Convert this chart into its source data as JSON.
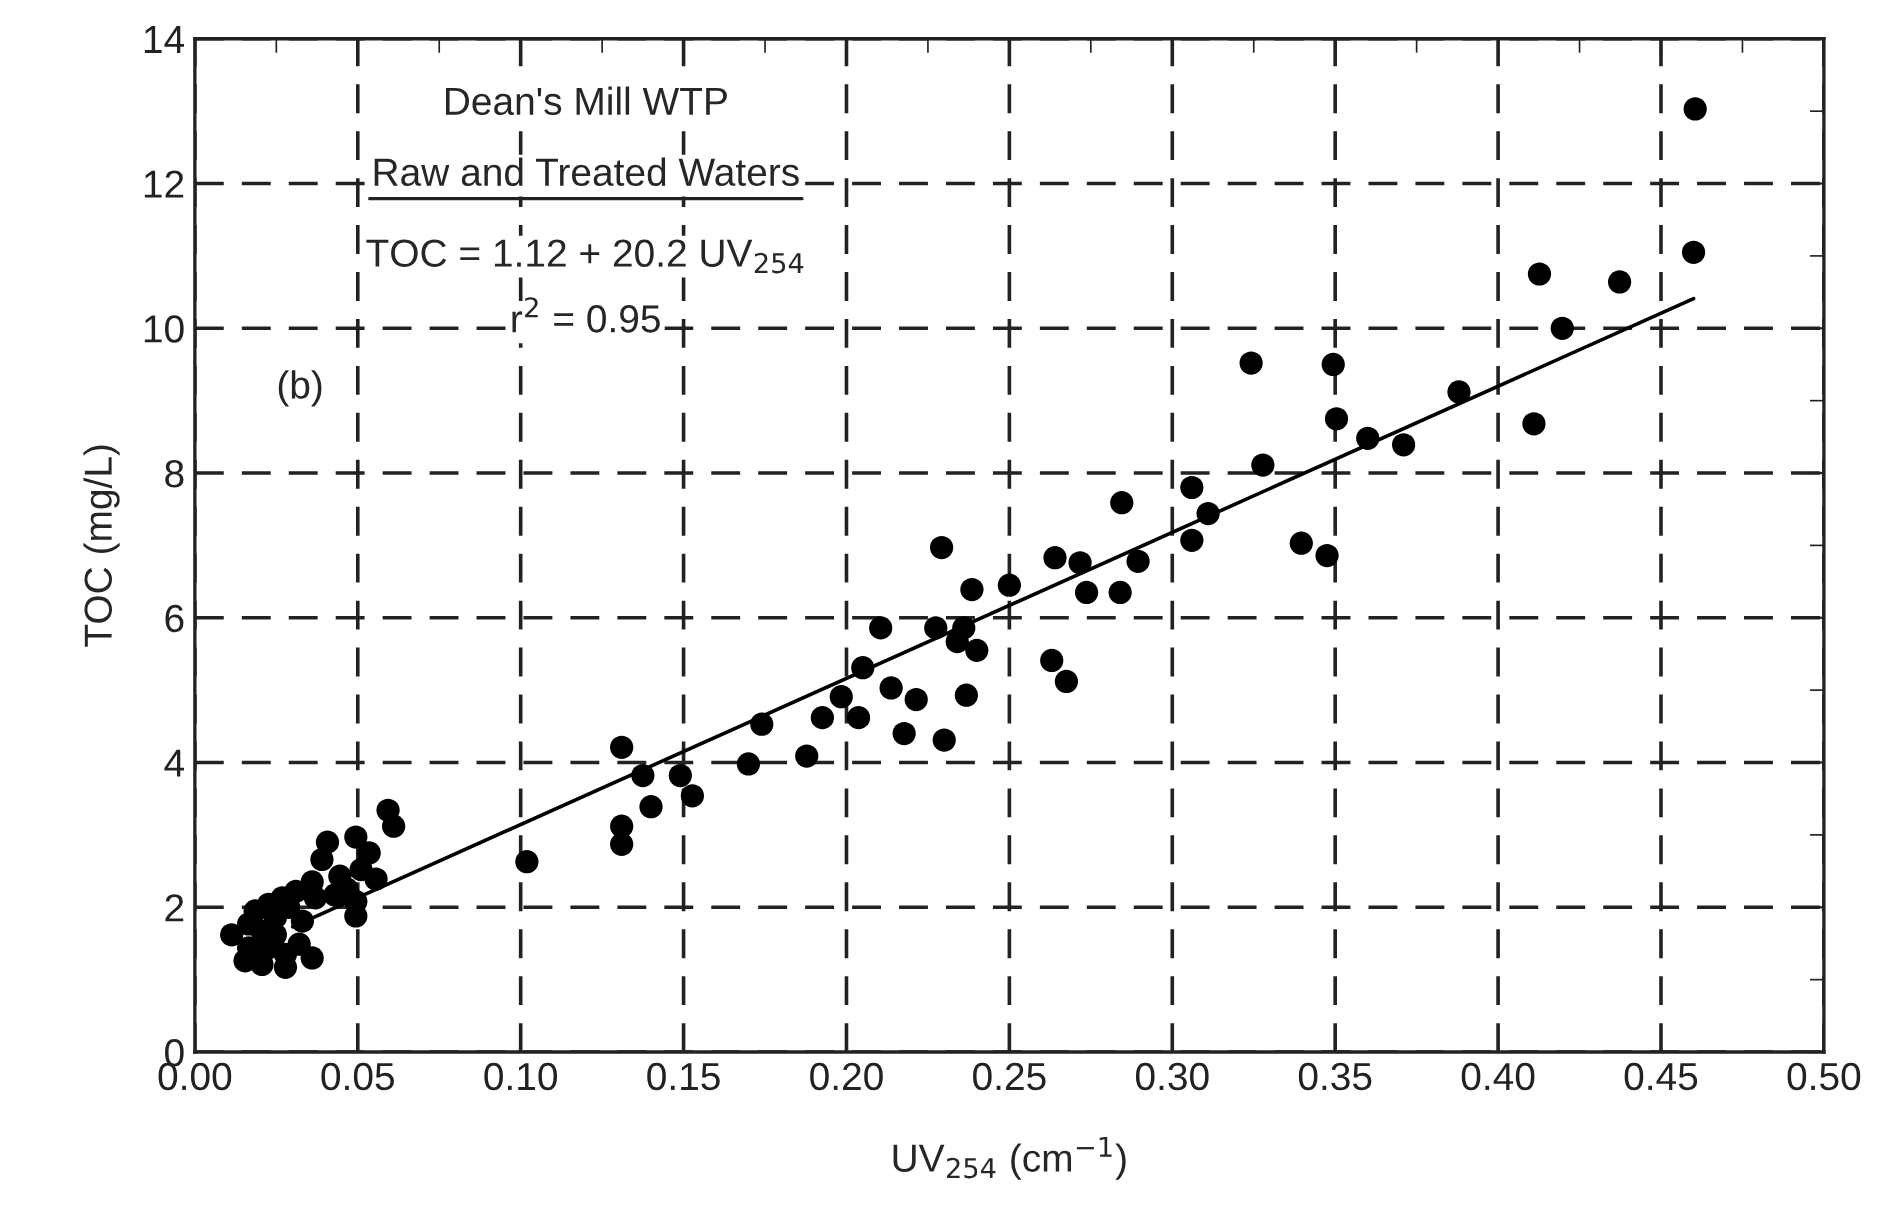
{
  "chart_data": {
    "type": "scatter",
    "xlabel": "UV$_{254}$ (cm$^{−1}$)",
    "ylabel": "TOC (mg/L)",
    "annotations": [
      "Dean's Mill WTP",
      "Raw and Treated Waters",
      "TOC = 1.12 + 20.2 UV$_{254}$",
      "r$^{2}$ = 0.95",
      "(b)"
    ],
    "xlim": [
      0,
      0.5
    ],
    "ylim": [
      0,
      14
    ],
    "xticks": [
      {
        "value": 0,
        "label": "0.00"
      },
      {
        "value": 0.05,
        "label": "0.05"
      },
      {
        "value": 0.1,
        "label": "0.10"
      },
      {
        "value": 0.15,
        "label": "0.15"
      },
      {
        "value": 0.2,
        "label": "0.20"
      },
      {
        "value": 0.25,
        "label": "0.25"
      },
      {
        "value": 0.3,
        "label": "0.30"
      },
      {
        "value": 0.35,
        "label": "0.35"
      },
      {
        "value": 0.4,
        "label": "0.40"
      },
      {
        "value": 0.45,
        "label": "0.45"
      },
      {
        "value": 0.5,
        "label": "0.50"
      }
    ],
    "yticks": [
      0,
      2,
      4,
      6,
      8,
      10,
      12,
      14
    ],
    "grid": true,
    "marker": "circle",
    "series": [
      {
        "color": "#000000",
        "x": [
          0.4605,
          0.46,
          0.4127,
          0.4373,
          0.4197,
          0.3242,
          0.3494,
          0.3504,
          0.36,
          0.371,
          0.388,
          0.411,
          0.3278,
          0.311,
          0.306,
          0.3396,
          0.3475,
          0.306,
          0.2845,
          0.264,
          0.2717,
          0.2895,
          0.2737,
          0.284,
          0.25,
          0.2385,
          0.2292,
          0.2105,
          0.2274,
          0.236,
          0.234,
          0.24,
          0.263,
          0.2675,
          0.2368,
          0.205,
          0.2137,
          0.2214,
          0.1984,
          0.1926,
          0.2037,
          0.2177,
          0.23,
          0.174,
          0.1878,
          0.1699,
          0.149,
          0.1527,
          0.131,
          0.1375,
          0.14,
          0.131,
          0.131,
          0.1019,
          0.0593,
          0.061,
          0.0494,
          0.0407,
          0.039,
          0.0535,
          0.051,
          0.0556,
          0.0445,
          0.0467,
          0.0494,
          0.0494,
          0.043,
          0.037,
          0.031,
          0.036,
          0.0268,
          0.0226,
          0.0185,
          0.0247,
          0.0288,
          0.0165,
          0.0113,
          0.0206,
          0.0247,
          0.0165,
          0.0226,
          0.0154,
          0.0206,
          0.0278,
          0.0278,
          0.036,
          0.033,
          0.032
        ],
        "values": [
          13.03,
          11.05,
          10.75,
          10.64,
          10.0,
          9.52,
          9.5,
          8.75,
          8.48,
          8.39,
          9.12,
          8.68,
          8.11,
          7.44,
          7.8,
          7.03,
          6.86,
          7.07,
          7.59,
          6.83,
          6.76,
          6.78,
          6.35,
          6.35,
          6.45,
          6.39,
          6.97,
          5.86,
          5.86,
          5.86,
          5.67,
          5.55,
          5.41,
          5.12,
          4.93,
          5.31,
          5.03,
          4.87,
          4.91,
          4.62,
          4.62,
          4.4,
          4.31,
          4.53,
          4.09,
          3.98,
          3.82,
          3.54,
          4.21,
          3.82,
          3.39,
          3.12,
          2.87,
          2.63,
          3.34,
          3.12,
          2.97,
          2.9,
          2.66,
          2.75,
          2.52,
          2.39,
          2.43,
          2.25,
          1.88,
          2.08,
          2.17,
          2.13,
          2.22,
          2.35,
          2.13,
          2.04,
          1.95,
          1.86,
          2.0,
          1.77,
          1.62,
          1.67,
          1.62,
          1.44,
          1.44,
          1.26,
          1.21,
          1.17,
          1.35,
          1.3,
          1.81,
          1.49
        ]
      },
      {
        "type": "line",
        "color": "#000000",
        "marker": "none",
        "line_style": "solid",
        "x": [
          0.03,
          0.46
        ],
        "values": [
          1.73,
          10.41
        ]
      }
    ]
  }
}
